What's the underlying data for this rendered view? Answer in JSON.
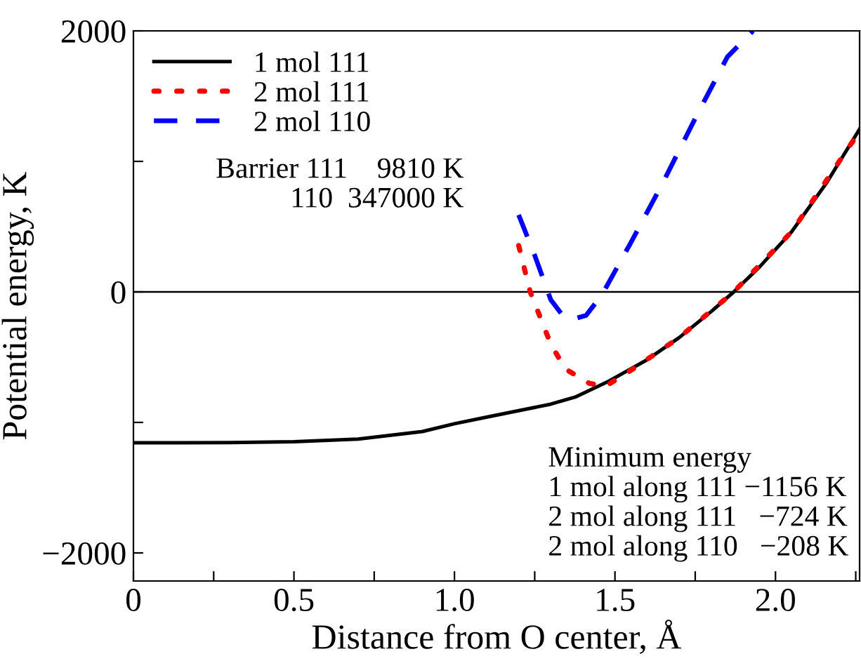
{
  "chart_data": {
    "type": "line",
    "xlabel": "Distance from O center, Å",
    "ylabel": "Potential energy, K",
    "xlim": [
      0,
      2.262
    ],
    "ylim": [
      -2215,
      2000
    ],
    "xticks": [
      0,
      {
        "value": 0.25,
        "label": null
      },
      0.5,
      {
        "value": 0.75,
        "label": null
      },
      {
        "value": 1.0,
        "label": "1.0"
      },
      {
        "value": 1.25,
        "label": null
      },
      1.5,
      {
        "value": 1.75,
        "label": null
      },
      {
        "value": 2.0,
        "label": "2.0"
      },
      {
        "value": 2.25,
        "label": null
      }
    ],
    "yticks": [
      {
        "value": -2000,
        "label": "−2000"
      },
      {
        "value": -1000,
        "label": null
      },
      0,
      {
        "value": 1000,
        "label": null
      },
      2000
    ],
    "legend": "top left",
    "grid": false,
    "ref_lines": [
      {
        "axis": "y",
        "value": 0,
        "color": "#000000",
        "line_style": "solid"
      }
    ],
    "series": [
      {
        "name": "1 mol 111",
        "color": "#000000",
        "line_style": "solid",
        "x": [
          0,
          0.3,
          0.5,
          0.7,
          0.9,
          1.0,
          1.1,
          1.2,
          1.3,
          1.376,
          1.476,
          1.6,
          1.7,
          1.8,
          1.87,
          1.95,
          2.05,
          2.16,
          2.262
        ],
        "values": [
          -1156,
          -1155,
          -1148,
          -1128,
          -1070,
          -1010,
          -960,
          -910,
          -860,
          -806,
          -690,
          -520,
          -350,
          -150,
          0,
          190,
          460,
          839,
          1247
        ]
      },
      {
        "name": "2 mol 111",
        "color": "#ff0000",
        "line_style": "dotted",
        "x": [
          1.2,
          1.236,
          1.26,
          1.3,
          1.345,
          1.42,
          1.47,
          1.55,
          1.7,
          1.87,
          2.05,
          2.262
        ],
        "values": [
          355,
          0,
          -150,
          -400,
          -590,
          -700,
          -724,
          -600,
          -350,
          0,
          460,
          1230
        ]
      },
      {
        "name": "2 mol 110",
        "color": "#0000ff",
        "line_style": "dashed",
        "x": [
          1.2,
          1.25,
          1.3,
          1.34,
          1.37,
          1.41,
          1.46,
          1.55,
          1.65,
          1.75,
          1.85,
          1.93
        ],
        "values": [
          590,
          280,
          -60,
          -190,
          -208,
          -180,
          -20,
          380,
          840,
          1330,
          1800,
          2000
        ]
      }
    ],
    "annotations": [
      "Barrier 111    9810 K\n110  347000 K",
      "Minimum energy\n1 mol along 111 −1156 K\n2 mol along 111   −724 K\n2 mol along 110   −208 K"
    ]
  }
}
